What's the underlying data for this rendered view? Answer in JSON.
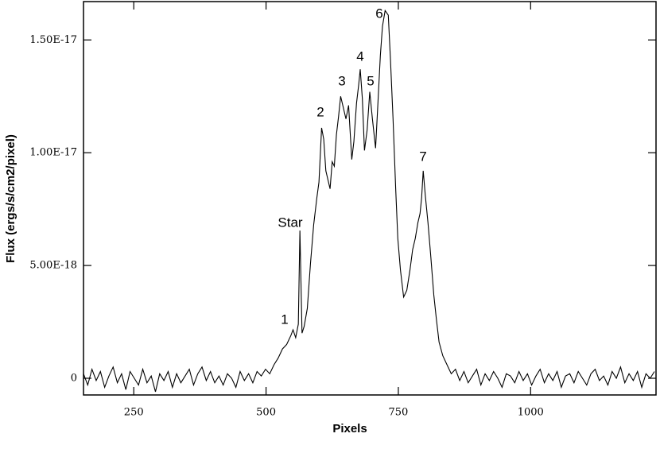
{
  "chart_data": {
    "type": "line",
    "x_label": "Pixels",
    "y_label": "Flux (ergs/s/cm2/pixel)",
    "color": "#000000",
    "annotations": [
      "1",
      "Star",
      "2",
      "3",
      "4",
      "5",
      "6",
      "7"
    ],
    "xlim": [
      155,
      1237
    ],
    "ylim": [
      -7.4e-19,
      1.67e-17
    ],
    "xticks": [
      250,
      500,
      750,
      1000
    ],
    "yticks": [
      0,
      {
        "value": 5e-18,
        "label": "5.00E-18"
      },
      {
        "value": 1e-17,
        "label": "1.00E-17"
      },
      {
        "value": 1.5e-17,
        "label": "1.50E-17"
      }
    ],
    "x": [
      155,
      163,
      171,
      179,
      187,
      195,
      203,
      211,
      219,
      227,
      235,
      243,
      251,
      259,
      267,
      275,
      283,
      291,
      299,
      307,
      315,
      323,
      331,
      339,
      347,
      355,
      363,
      371,
      379,
      387,
      395,
      403,
      411,
      419,
      427,
      435,
      443,
      451,
      459,
      467,
      475,
      483,
      491,
      499,
      507,
      515,
      523,
      531,
      539,
      547,
      551,
      556,
      561,
      564,
      568,
      572,
      578,
      584,
      590,
      596,
      600,
      605,
      609,
      613,
      617,
      621,
      625,
      629,
      633,
      637,
      641,
      646,
      651,
      656,
      662,
      666,
      671,
      675,
      678,
      682,
      686,
      691,
      696,
      701,
      707,
      711,
      716,
      720,
      725,
      731,
      735,
      740,
      745,
      749,
      754,
      760,
      766,
      772,
      777,
      782,
      787,
      791,
      794,
      797,
      801,
      806,
      811,
      817,
      822,
      827,
      834,
      842,
      850,
      858,
      866,
      874,
      882,
      890,
      898,
      906,
      914,
      922,
      930,
      938,
      946,
      954,
      962,
      970,
      978,
      986,
      994,
      1002,
      1010,
      1018,
      1026,
      1034,
      1042,
      1050,
      1058,
      1066,
      1074,
      1082,
      1090,
      1098,
      1106,
      1114,
      1122,
      1130,
      1138,
      1146,
      1154,
      1162,
      1170,
      1178,
      1186,
      1194,
      1202,
      1210,
      1218,
      1226,
      1234
    ],
    "values": [
      2e-19,
      -3e-19,
      4e-19,
      -1e-19,
      3e-19,
      -4e-19,
      1e-19,
      5e-19,
      -2e-19,
      2e-19,
      -5e-19,
      3e-19,
      0,
      -3e-19,
      4e-19,
      -2e-19,
      1e-19,
      -6e-19,
      2e-19,
      -1e-19,
      3e-19,
      -4e-19,
      2e-19,
      -2e-19,
      1e-19,
      4e-19,
      -3e-19,
      2e-19,
      5e-19,
      -1e-19,
      3e-19,
      -2e-19,
      1e-19,
      -3e-19,
      2e-19,
      0,
      -4e-19,
      3e-19,
      -1e-19,
      2e-19,
      -2e-19,
      3e-19,
      1e-19,
      4e-19,
      2e-19,
      6e-19,
      9e-19,
      1.3e-18,
      1.5e-18,
      1.9e-18,
      2.15e-18,
      1.8e-18,
      2.4e-18,
      6.55e-18,
      2e-18,
      2.3e-18,
      3.1e-18,
      5.1e-18,
      6.8e-18,
      8e-18,
      8.7e-18,
      1.11e-17,
      1.06e-17,
      9.2e-18,
      8.8e-18,
      8.4e-18,
      9.6e-18,
      9.4e-18,
      1.08e-17,
      1.16e-17,
      1.25e-17,
      1.2e-17,
      1.15e-17,
      1.21e-17,
      9.7e-18,
      1.05e-17,
      1.22e-17,
      1.3e-17,
      1.37e-17,
      1.24e-17,
      1.01e-17,
      1.1e-17,
      1.27e-17,
      1.15e-17,
      1.02e-17,
      1.2e-17,
      1.43e-17,
      1.56e-17,
      1.63e-17,
      1.61e-17,
      1.42e-17,
      1.15e-17,
      8.4e-18,
      6.2e-18,
      4.8e-18,
      3.6e-18,
      3.9e-18,
      4.8e-18,
      5.7e-18,
      6.2e-18,
      6.9e-18,
      7.3e-18,
      8e-18,
      9.2e-18,
      8.1e-18,
      6.9e-18,
      5.5e-18,
      3.7e-18,
      2.6e-18,
      1.6e-18,
      1e-18,
      6e-19,
      2e-19,
      4e-19,
      -1e-19,
      3e-19,
      -2e-19,
      1e-19,
      4e-19,
      -3e-19,
      2e-19,
      -1e-19,
      3e-19,
      0,
      -4e-19,
      2e-19,
      1e-19,
      -2e-19,
      3e-19,
      -1e-19,
      2e-19,
      -3e-19,
      1e-19,
      4e-19,
      -2e-19,
      2e-19,
      -1e-19,
      3e-19,
      -4e-19,
      1e-19,
      2e-19,
      -2e-19,
      3e-19,
      0,
      -3e-19,
      2e-19,
      4e-19,
      -1e-19,
      1e-19,
      -3e-19,
      3e-19,
      0,
      5e-19,
      -2e-19,
      2e-19,
      -1e-19,
      3e-19,
      -4e-19,
      2e-19,
      0,
      3e-19
    ]
  }
}
